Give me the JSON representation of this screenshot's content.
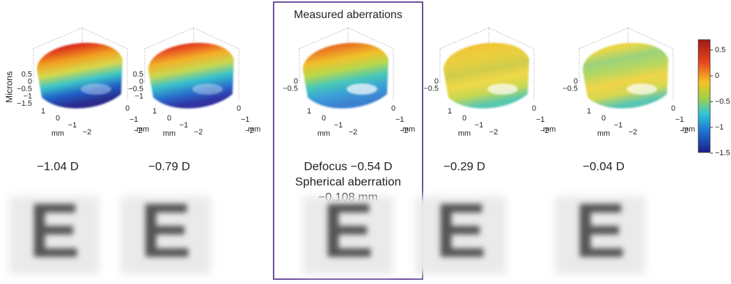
{
  "highlight_title": "Measured aberrations",
  "z_axis_label": "Microns",
  "panels": [
    {
      "z_ticks": [
        "0.5",
        "0",
        "−0.5",
        "−1",
        "−1.5"
      ],
      "x_ticks": [
        "1",
        "0",
        "−1",
        "−2"
      ],
      "x_unit": "mm",
      "y_ticks": [
        "0",
        "−1",
        "−2"
      ],
      "y_unit": "mm",
      "caption": [
        "−1.04 D"
      ],
      "letter": "E"
    },
    {
      "z_ticks": [
        "0.5",
        "0",
        "−0.5",
        "−1"
      ],
      "x_ticks": [
        "1",
        "0",
        "−1",
        "−2"
      ],
      "x_unit": "mm",
      "y_ticks": [
        "0",
        "−1",
        "−2"
      ],
      "y_unit": "mm",
      "caption": [
        "−0.79 D"
      ],
      "letter": "E"
    },
    {
      "z_ticks": [
        "0",
        "−0.5"
      ],
      "x_ticks": [
        "1",
        "0",
        "−1",
        "−2"
      ],
      "x_unit": "mm",
      "y_ticks": [
        "0",
        "−1",
        "−2"
      ],
      "y_unit": "mm",
      "caption": [
        "Defocus −0.54 D",
        "Spherical aberration",
        "−0.108 mm"
      ],
      "letter": "E"
    },
    {
      "z_ticks": [
        "0",
        "−0.5"
      ],
      "x_ticks": [
        "1",
        "0",
        "−1",
        "−2"
      ],
      "x_unit": "mm",
      "y_ticks": [
        "0",
        "−1",
        "−2"
      ],
      "y_unit": "mm",
      "caption": [
        "−0.29 D"
      ],
      "letter": "E"
    },
    {
      "z_ticks": [
        "0",
        "−0.5"
      ],
      "x_ticks": [
        "1",
        "0",
        "−1",
        "−2"
      ],
      "x_unit": "mm",
      "y_ticks": [
        "0",
        "−1",
        "−2"
      ],
      "y_unit": "mm",
      "caption": [
        "−0.04 D"
      ],
      "letter": "E"
    }
  ],
  "colorbar_ticks": [
    "0.5",
    "0",
    "−0.5",
    "−1",
    "−1.5"
  ]
}
